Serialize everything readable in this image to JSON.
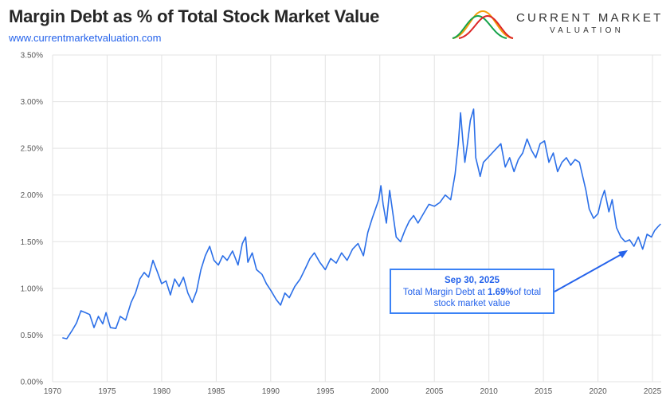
{
  "header": {
    "title": "Margin Debt as % of Total Stock Market Value",
    "subtitle": "www.currentmarketvaluation.com"
  },
  "logo": {
    "line1": "CURRENT MARKET",
    "line2": "VALUATION",
    "colors": [
      "#f59e0b",
      "#16a34a",
      "#dc2626"
    ]
  },
  "annotation": {
    "date": "Sep 30, 2025",
    "text_before": "Total Margin Debt at ",
    "value": "1.69%",
    "text_after": "of total",
    "line2": "stock market value"
  },
  "chart_data": {
    "type": "line",
    "title": "Margin Debt as % of Total Stock Market Value",
    "xlabel": "",
    "ylabel": "",
    "xlim": [
      1970,
      2025.8
    ],
    "ylim": [
      0,
      3.5
    ],
    "xticks": [
      1970,
      1975,
      1980,
      1985,
      1990,
      1995,
      2000,
      2005,
      2010,
      2015,
      2020,
      2025
    ],
    "yticks": [
      0,
      0.5,
      1.0,
      1.5,
      2.0,
      2.5,
      3.0,
      3.5
    ],
    "ytick_labels": [
      "0.00%",
      "0.50%",
      "1.00%",
      "1.50%",
      "2.00%",
      "2.50%",
      "3.00%",
      "3.50%"
    ],
    "grid": true,
    "color": "#2b6fe8",
    "series": [
      {
        "x": [
          1970.9,
          1971.3,
          1971.8,
          1972.2,
          1972.6,
          1973.0,
          1973.4,
          1973.8,
          1974.2,
          1974.6,
          1974.9,
          1975.3,
          1975.8,
          1976.2,
          1976.7,
          1977.2,
          1977.6,
          1978.0,
          1978.4,
          1978.8,
          1979.2,
          1979.6,
          1980.0,
          1980.4,
          1980.8,
          1981.2,
          1981.6,
          1982.0,
          1982.4,
          1982.8,
          1983.2,
          1983.6,
          1984.0,
          1984.4,
          1984.8,
          1985.2,
          1985.6,
          1986.0,
          1986.5,
          1987.0,
          1987.4,
          1987.7,
          1987.9,
          1988.3,
          1988.7,
          1989.2,
          1989.6,
          1990.0,
          1990.5,
          1990.9,
          1991.3,
          1991.7,
          1992.2,
          1992.7,
          1993.2,
          1993.6,
          1994.0,
          1994.5,
          1995.0,
          1995.5,
          1996.0,
          1996.5,
          1997.0,
          1997.5,
          1998.0,
          1998.5,
          1998.9,
          1999.3,
          1999.6,
          1999.9,
          2000.1,
          2000.3,
          2000.6,
          2000.9,
          2001.2,
          2001.5,
          2001.9,
          2002.3,
          2002.7,
          2003.1,
          2003.5,
          2004.0,
          2004.5,
          2005.0,
          2005.5,
          2006.0,
          2006.5,
          2006.9,
          2007.2,
          2007.4,
          2007.6,
          2007.8,
          2008.0,
          2008.3,
          2008.6,
          2008.8,
          2009.0,
          2009.2,
          2009.5,
          2009.9,
          2010.3,
          2010.7,
          2011.1,
          2011.5,
          2011.9,
          2012.3,
          2012.7,
          2013.1,
          2013.5,
          2013.9,
          2014.3,
          2014.7,
          2015.1,
          2015.5,
          2015.9,
          2016.3,
          2016.7,
          2017.1,
          2017.5,
          2017.9,
          2018.3,
          2018.6,
          2018.9,
          2019.2,
          2019.6,
          2020.0,
          2020.3,
          2020.6,
          2021.0,
          2021.3,
          2021.7,
          2022.1,
          2022.5,
          2022.9,
          2023.3,
          2023.7,
          2024.1,
          2024.5,
          2024.9,
          2025.2,
          2025.5,
          2025.75
        ],
        "values": [
          0.47,
          0.46,
          0.55,
          0.63,
          0.76,
          0.74,
          0.72,
          0.58,
          0.7,
          0.62,
          0.74,
          0.58,
          0.57,
          0.7,
          0.66,
          0.85,
          0.95,
          1.1,
          1.17,
          1.12,
          1.3,
          1.18,
          1.05,
          1.08,
          0.93,
          1.1,
          1.02,
          1.12,
          0.95,
          0.85,
          0.97,
          1.2,
          1.35,
          1.45,
          1.3,
          1.25,
          1.35,
          1.3,
          1.4,
          1.25,
          1.48,
          1.55,
          1.28,
          1.38,
          1.2,
          1.15,
          1.05,
          0.98,
          0.88,
          0.82,
          0.95,
          0.9,
          1.02,
          1.1,
          1.22,
          1.32,
          1.38,
          1.28,
          1.2,
          1.32,
          1.27,
          1.38,
          1.3,
          1.42,
          1.48,
          1.35,
          1.6,
          1.75,
          1.85,
          1.95,
          2.1,
          1.9,
          1.7,
          2.05,
          1.8,
          1.55,
          1.5,
          1.62,
          1.72,
          1.78,
          1.7,
          1.8,
          1.9,
          1.88,
          1.92,
          2.0,
          1.95,
          2.22,
          2.55,
          2.88,
          2.6,
          2.35,
          2.52,
          2.8,
          2.92,
          2.4,
          2.3,
          2.2,
          2.35,
          2.4,
          2.45,
          2.5,
          2.55,
          2.3,
          2.4,
          2.25,
          2.38,
          2.45,
          2.6,
          2.48,
          2.4,
          2.55,
          2.58,
          2.35,
          2.45,
          2.25,
          2.35,
          2.4,
          2.32,
          2.38,
          2.35,
          2.2,
          2.05,
          1.85,
          1.75,
          1.8,
          1.95,
          2.05,
          1.82,
          1.95,
          1.65,
          1.55,
          1.5,
          1.52,
          1.45,
          1.55,
          1.42,
          1.58,
          1.55,
          1.62,
          1.66,
          1.69
        ]
      }
    ]
  }
}
